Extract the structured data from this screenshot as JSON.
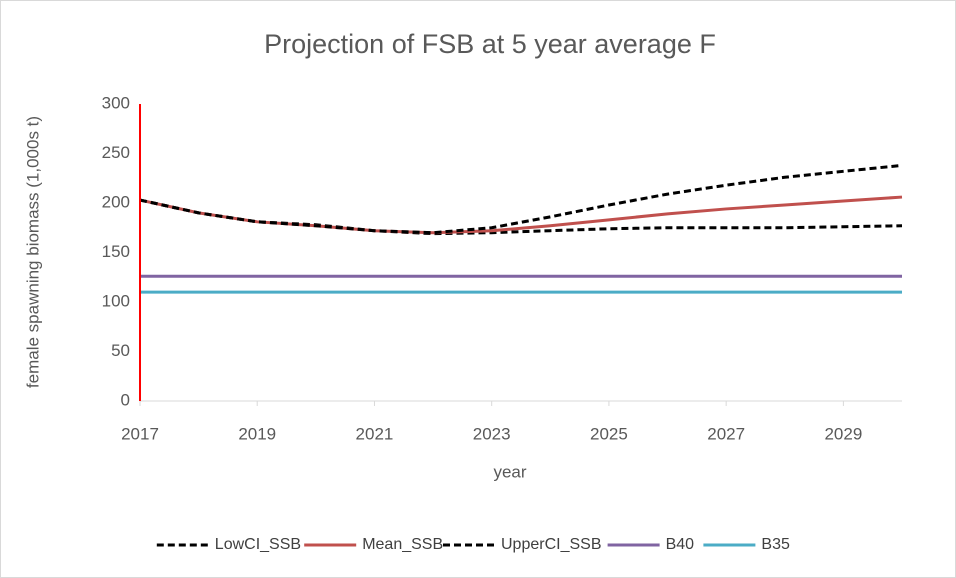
{
  "chart_data": {
    "type": "line",
    "title": "Projection of FSB at 5 year average F",
    "x_label": "year",
    "y_label": "female spawning biomass (1,000s t)",
    "x": [
      2017,
      2018,
      2019,
      2020,
      2021,
      2022,
      2023,
      2024,
      2025,
      2026,
      2027,
      2028,
      2029,
      2030
    ],
    "xlim": [
      2017,
      2030
    ],
    "xticks": [
      2017,
      2019,
      2021,
      2023,
      2025,
      2027,
      2029
    ],
    "ylim": [
      0,
      300
    ],
    "yticks": [
      0,
      50,
      100,
      150,
      200,
      250,
      300
    ],
    "grid": false,
    "legend": "bottom",
    "series": [
      {
        "name": "LowCI_SSB",
        "color": "#000000",
        "dashed": true,
        "values": [
          203,
          190,
          181,
          178,
          172,
          169,
          170,
          172,
          174,
          175,
          175,
          175,
          176,
          177
        ]
      },
      {
        "name": "Mean_SSB",
        "color": "#c0504d",
        "dashed": false,
        "values": [
          203,
          190,
          181,
          177,
          172,
          170,
          172,
          177,
          183,
          189,
          194,
          198,
          202,
          206
        ]
      },
      {
        "name": "UpperCI_SSB",
        "color": "#000000",
        "dashed": true,
        "values": [
          203,
          190,
          181,
          177,
          172,
          170,
          175,
          186,
          198,
          209,
          218,
          226,
          232,
          238
        ]
      },
      {
        "name": "B40",
        "color": "#8064a2",
        "dashed": false,
        "values": [
          126,
          126,
          126,
          126,
          126,
          126,
          126,
          126,
          126,
          126,
          126,
          126,
          126,
          126
        ]
      },
      {
        "name": "B35",
        "color": "#4bacc6",
        "dashed": false,
        "values": [
          110,
          110,
          110,
          110,
          110,
          110,
          110,
          110,
          110,
          110,
          110,
          110,
          110,
          110
        ]
      }
    ]
  }
}
